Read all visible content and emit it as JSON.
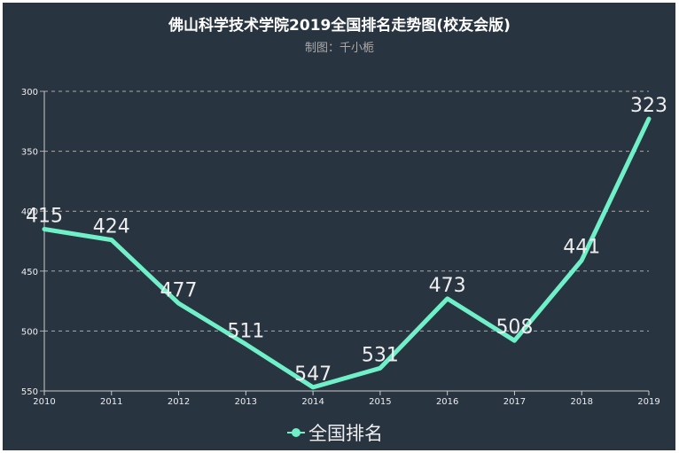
{
  "title": "佛山科学技术学院2019全国排名走势图(校友会版)",
  "subtitle": "制图：千小栀",
  "legend": {
    "label": "全国排名"
  },
  "colors": {
    "background": "#293441",
    "line": "#6ff0c8",
    "text": "#eeeeee",
    "grid": "#aaaaaa"
  },
  "chart_data": {
    "type": "line",
    "title": "佛山科学技术学院2019全国排名走势图(校友会版)",
    "subtitle": "制图：千小栀",
    "categories": [
      "2010",
      "2011",
      "2012",
      "2013",
      "2014",
      "2015",
      "2016",
      "2017",
      "2018",
      "2019"
    ],
    "series": [
      {
        "name": "全国排名",
        "values": [
          415,
          424,
          477,
          511,
          547,
          531,
          473,
          508,
          441,
          323
        ]
      }
    ],
    "xlabel": "",
    "ylabel": "",
    "ylim": [
      300,
      550
    ],
    "y_inverted": true,
    "yticks": [
      300,
      350,
      400,
      450,
      500,
      550
    ],
    "grid": true,
    "legend_position": "bottom"
  }
}
